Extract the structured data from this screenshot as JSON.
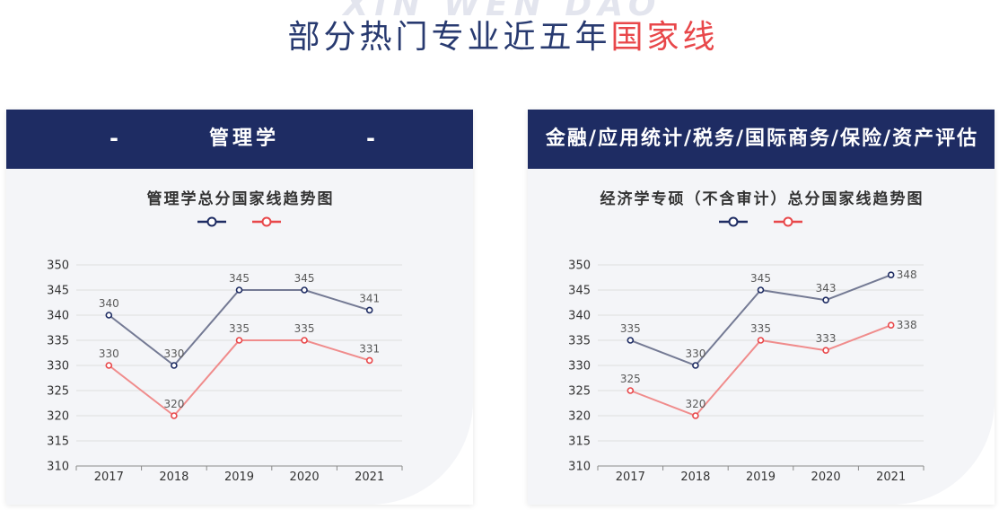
{
  "page": {
    "watermark": "XIN WEN DAO",
    "title_main": "部分热门专业近五年",
    "title_highlight": "国家线"
  },
  "colors": {
    "title_text": "#283a70",
    "title_highlight": "#e8474a",
    "header_background": "#1e2c63",
    "header_text": "#ffffff",
    "card_background": "#f4f5f8",
    "watermark": "#e3e5ee"
  },
  "cards": [
    {
      "header": "管理学",
      "dash_left": "-",
      "dash_right": "-"
    },
    {
      "header": "金融/应用统计/税务/国际商务/保险/资产评估"
    }
  ],
  "chart_data": [
    {
      "type": "line",
      "title": "管理学总分国家线趋势图",
      "categories": [
        "2017",
        "2018",
        "2019",
        "2020",
        "2021"
      ],
      "series": [
        {
          "values": [
            340,
            330,
            345,
            345,
            341
          ],
          "line_color": "#747a94",
          "marker_color": "#1e2c63"
        },
        {
          "values": [
            330,
            320,
            335,
            335,
            331
          ],
          "line_color": "#f08c8c",
          "marker_color": "#e8474a"
        }
      ],
      "yticks": [
        310,
        315,
        320,
        325,
        330,
        335,
        340,
        345,
        350
      ],
      "ylim": [
        310,
        350
      ],
      "grid": true,
      "legend": "top-center",
      "data_labels": true
    },
    {
      "type": "line",
      "title": "经济学专硕（不含审计）总分国家线趋势图",
      "categories": [
        "2017",
        "2018",
        "2019",
        "2020",
        "2021"
      ],
      "series": [
        {
          "values": [
            335,
            330,
            345,
            343,
            348
          ],
          "line_color": "#747a94",
          "marker_color": "#1e2c63"
        },
        {
          "values": [
            325,
            320,
            335,
            333,
            338
          ],
          "line_color": "#f08c8c",
          "marker_color": "#e8474a"
        }
      ],
      "yticks": [
        310,
        315,
        320,
        325,
        330,
        335,
        340,
        345,
        350
      ],
      "ylim": [
        310,
        350
      ],
      "grid": true,
      "legend": "top-center",
      "data_labels": true
    }
  ]
}
